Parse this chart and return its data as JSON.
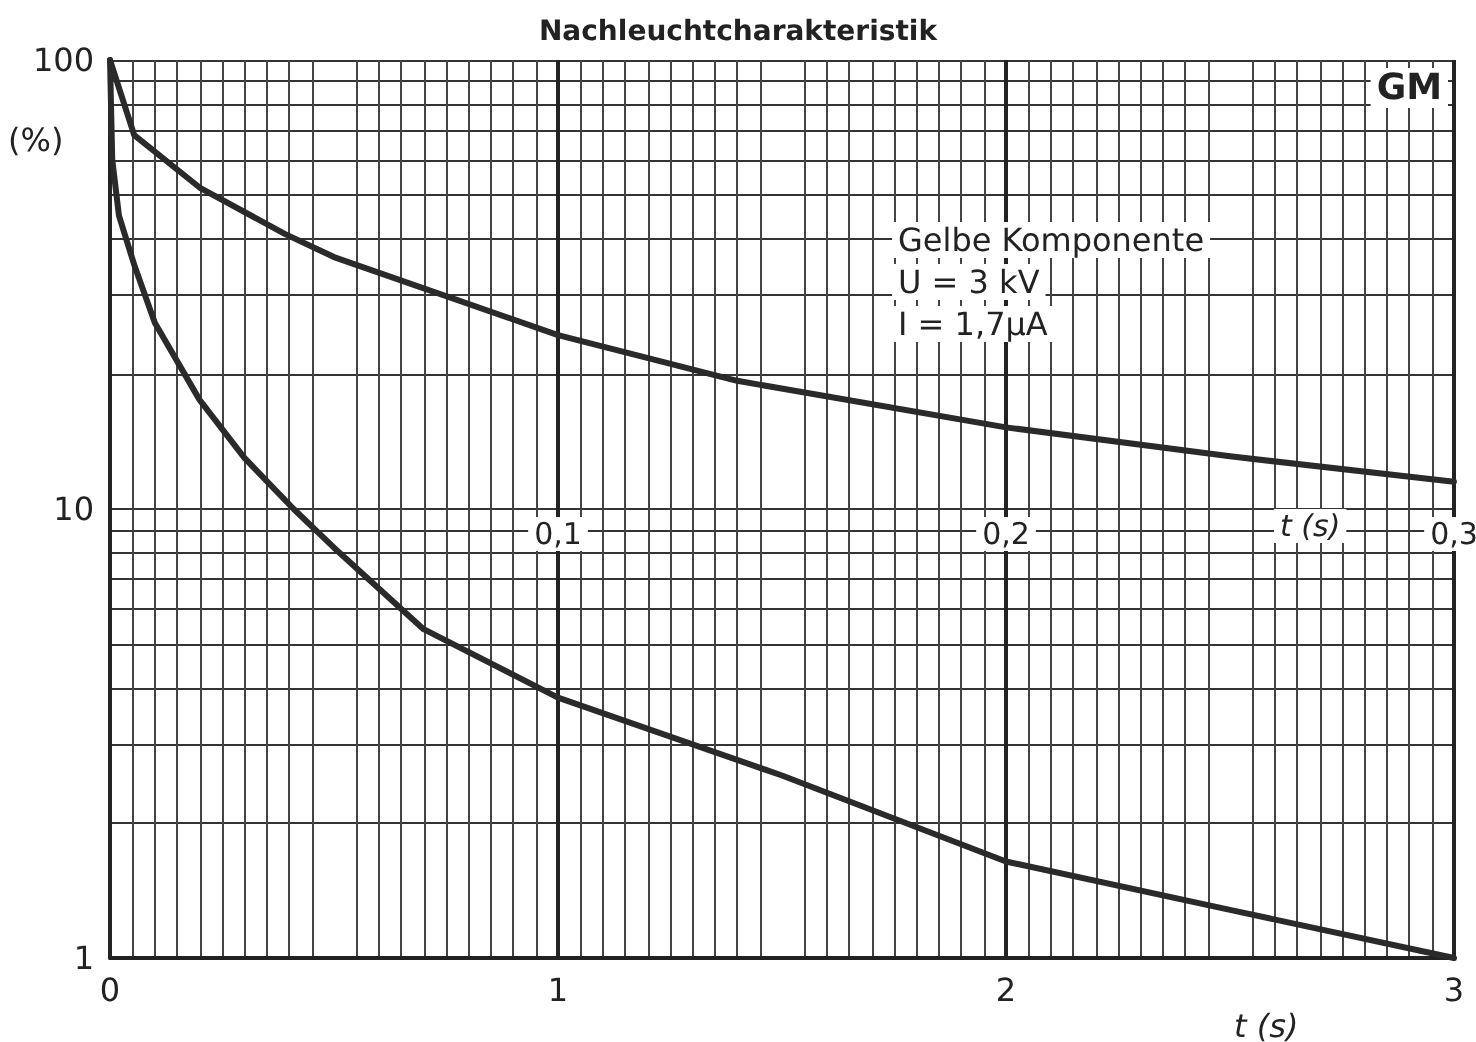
{
  "chart_data": {
    "type": "line",
    "title": "Nachleuchtcharakteristik",
    "xlabel": "t (s)",
    "ylabel": "(%)",
    "x2label": "t (s)",
    "annotations": [
      "GM",
      "Gelbe Komponente",
      "U = 3 kV",
      "I = 1,7µA"
    ],
    "xlim": [
      0,
      3
    ],
    "xticks": [
      0,
      1,
      2,
      3
    ],
    "x2lim": [
      0,
      0.3
    ],
    "x2ticks": [
      {
        "value": 0.1,
        "label": "0,1"
      },
      {
        "value": 0.2,
        "label": "0,2"
      },
      {
        "value": 0.3,
        "label": "0,3"
      }
    ],
    "ylim": [
      1,
      100
    ],
    "yticks": [
      1,
      {
        "value": 2,
        "label": null
      },
      {
        "value": 3,
        "label": null
      },
      {
        "value": 4,
        "label": null
      },
      {
        "value": 5,
        "label": null
      },
      {
        "value": 6,
        "label": null
      },
      {
        "value": 7,
        "label": null
      },
      {
        "value": 8,
        "label": null
      },
      {
        "value": 9,
        "label": null
      },
      10,
      {
        "value": 20,
        "label": null
      },
      {
        "value": 30,
        "label": null
      },
      {
        "value": 40,
        "label": null
      },
      {
        "value": 50,
        "label": null
      },
      {
        "value": 60,
        "label": null
      },
      {
        "value": 70,
        "label": null
      },
      {
        "value": 80,
        "label": null
      },
      {
        "value": 90,
        "label": null
      },
      100
    ],
    "log": "y",
    "grid": true,
    "marker": "none",
    "line_style": "solid",
    "series": [
      {
        "color": "#2a2a2a",
        "axis": "x2",
        "x": [
          0,
          0.0054,
          0.02,
          0.039,
          0.05,
          0.1,
          0.14,
          0.2,
          0.25,
          0.3
        ],
        "values": [
          100,
          68,
          52,
          41,
          36.4,
          24.4,
          19.3,
          15.2,
          13.1,
          11.5
        ]
      },
      {
        "color": "#2a2a2a",
        "x": [
          0,
          0.005,
          0.02,
          0.054,
          0.1,
          0.2,
          0.3,
          0.41,
          0.5,
          0.7,
          1,
          1.5,
          2,
          2.5,
          3
        ],
        "values": [
          100,
          60,
          45,
          35,
          26,
          17.5,
          13,
          10,
          8.2,
          5.4,
          3.8,
          2.55,
          1.64,
          1.28,
          1.0
        ]
      }
    ]
  }
}
